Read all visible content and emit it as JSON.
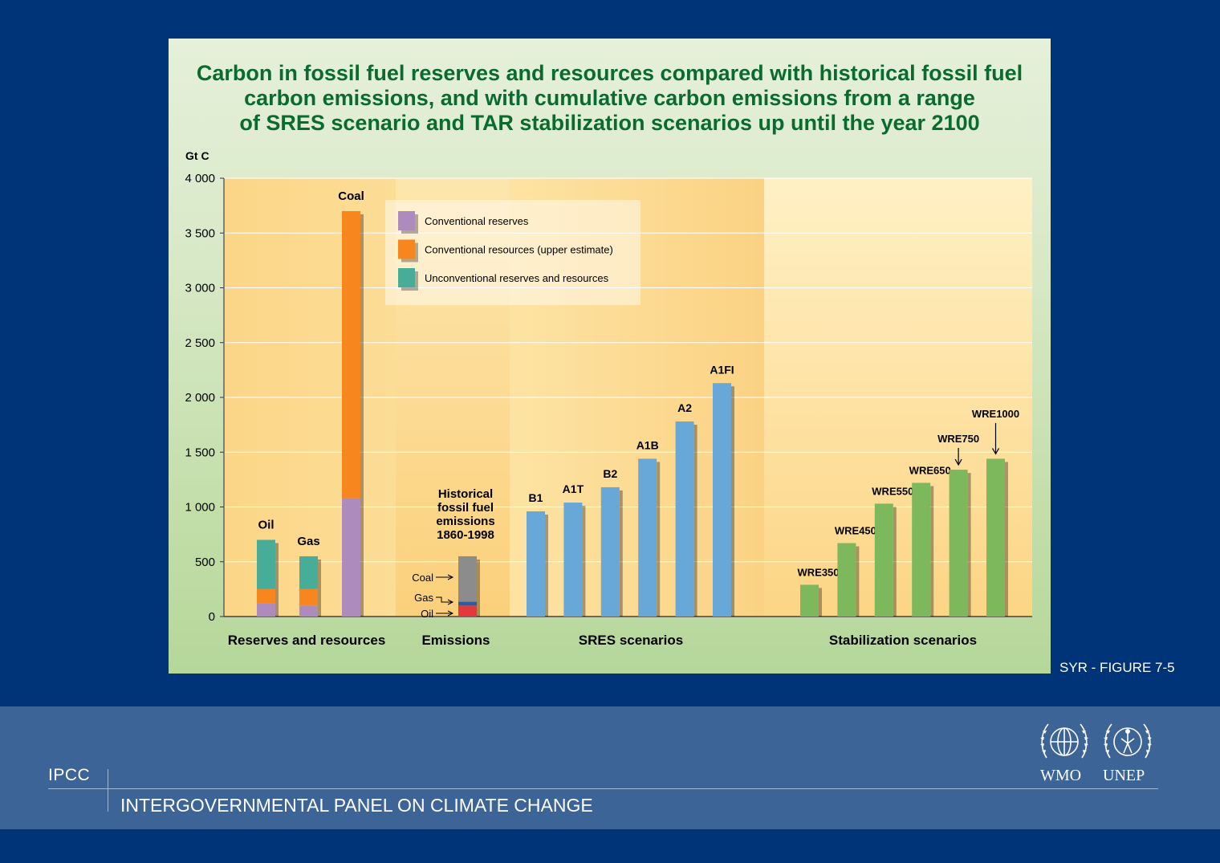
{
  "title": "Carbon in fossil fuel reserves and resources compared with historical fossil fuel\ncarbon emissions, and with cumulative carbon emissions from a range\nof SRES scenario and TAR stabilization scenarios up until the year 2100",
  "figure_label": "SYR - FIGURE 7-5",
  "footer": {
    "org_short": "IPCC",
    "org_full": "INTERGOVERNMENTAL PANEL ON CLIMATE CHANGE",
    "logo_wmo": "WMO",
    "logo_unep": "UNEP",
    "wmo_icon": "wmo-emblem-icon",
    "unep_icon": "unep-emblem-icon"
  },
  "colors": {
    "page_bg": "#003479",
    "title": "#0a6b2e",
    "conventional_reserves": "#ae8bbd",
    "conventional_resources": "#f7861f",
    "unconventional": "#47ad99",
    "sres_bar": "#67a8d9",
    "stabilization_bar": "#7db85d",
    "emissions_coal": "#8c8c8c",
    "emissions_gas": "#2f5d9c",
    "emissions_oil": "#e3393c"
  },
  "chart_data": {
    "type": "bar",
    "ylabel": "Gt C",
    "ylim": [
      0,
      4000
    ],
    "yticks": [
      0,
      500,
      1000,
      1500,
      2000,
      2500,
      3000,
      3500,
      4000
    ],
    "ytick_labels": [
      "0",
      "500",
      "1 000",
      "1 500",
      "2 000",
      "2 500",
      "3 000",
      "3 500",
      "4 000"
    ],
    "grid": true,
    "legend_position": "top-center",
    "legend": [
      "Conventional reserves",
      "Conventional resources (upper estimate)",
      "Unconventional reserves and resources"
    ],
    "groups": [
      {
        "label": "Reserves and resources",
        "stacked": true,
        "bars": [
          {
            "label": "Oil",
            "segments": [
              {
                "series": "Conventional reserves",
                "value": 120
              },
              {
                "series": "Conventional resources (upper estimate)",
                "value": 130
              },
              {
                "series": "Unconventional reserves and resources",
                "value": 450
              }
            ]
          },
          {
            "label": "Gas",
            "segments": [
              {
                "series": "Conventional reserves",
                "value": 100
              },
              {
                "series": "Conventional resources (upper estimate)",
                "value": 150
              },
              {
                "series": "Unconventional reserves and resources",
                "value": 300
              }
            ]
          },
          {
            "label": "Coal",
            "segments": [
              {
                "series": "Conventional reserves",
                "value": 1080
              },
              {
                "series": "Conventional resources (upper estimate)",
                "value": 2620
              }
            ]
          }
        ]
      },
      {
        "label": "Emissions",
        "stacked": true,
        "annotation": "Historical\nfossil fuel\nemissions\n1860-1998",
        "bars": [
          {
            "label": "",
            "segments": [
              {
                "series": "Oil",
                "value": 100
              },
              {
                "series": "Gas",
                "value": 35
              },
              {
                "series": "Coal",
                "value": 415
              }
            ]
          }
        ],
        "segment_labels": [
          "Coal",
          "Gas",
          "Oil"
        ]
      },
      {
        "label": "SRES scenarios",
        "stacked": false,
        "bars": [
          {
            "label": "B1",
            "value": 960
          },
          {
            "label": "A1T",
            "value": 1040
          },
          {
            "label": "B2",
            "value": 1180
          },
          {
            "label": "A1B",
            "value": 1440
          },
          {
            "label": "A2",
            "value": 1780
          },
          {
            "label": "A1FI",
            "value": 2130
          }
        ]
      },
      {
        "label": "Stabilization scenarios",
        "stacked": false,
        "bars": [
          {
            "label": "WRE350",
            "value": 290
          },
          {
            "label": "WRE450",
            "value": 670
          },
          {
            "label": "WRE550",
            "value": 1030
          },
          {
            "label": "WRE650",
            "value": 1220
          },
          {
            "label": "WRE750",
            "value": 1340
          },
          {
            "label": "WRE1000",
            "value": 1440
          }
        ]
      }
    ]
  }
}
